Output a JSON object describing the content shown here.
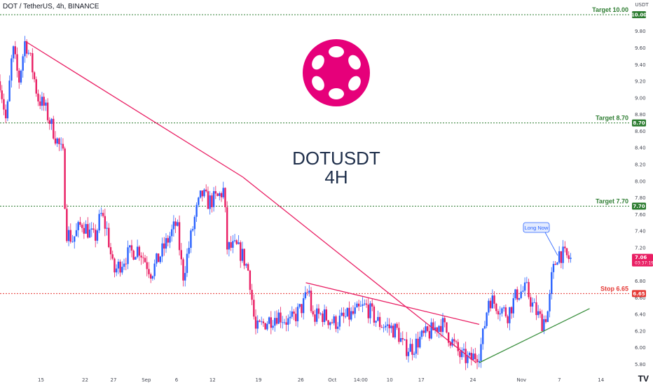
{
  "header": {
    "symbol_line": "DOT / TetherUS, 4h, BINANCE"
  },
  "colors": {
    "up": "#2962ff",
    "down": "#e91e63",
    "target": "#2e7d32",
    "stop": "#e53935",
    "trend": "#e91e63",
    "support": "#388e3c",
    "logo": "#e6007a",
    "price_badge": "#e91e63"
  },
  "icons": {
    "logo": "polkadot-logo-icon",
    "tv": "tradingview-logo-icon"
  },
  "chart_data": {
    "type": "candlestick",
    "title": "DOTUSDT",
    "subtitle": "4H",
    "y_axis": {
      "unit": "USDT",
      "ticks": [
        "10.00",
        "9.80",
        "9.60",
        "9.40",
        "9.20",
        "9.00",
        "8.80",
        "8.70",
        "8.60",
        "8.40",
        "8.20",
        "8.00",
        "7.80",
        "7.70",
        "7.60",
        "7.40",
        "7.20",
        "7.06",
        "6.80",
        "6.65",
        "6.60",
        "6.40",
        "6.20",
        "6.00",
        "5.80"
      ],
      "ylim": [
        5.72,
        10.05
      ]
    },
    "x_axis": {
      "ticks": [
        "15",
        "22",
        "27",
        "Sep",
        "6",
        "12",
        "19",
        "26",
        "Oct",
        "14:00",
        "10",
        "17",
        "24",
        "Nov",
        "7",
        "14"
      ]
    },
    "levels": [
      {
        "label": "Target 10.00",
        "badge": "10.00",
        "price": 10.0,
        "kind": "target"
      },
      {
        "label": "Target 8.70",
        "badge": "8.70",
        "price": 8.7,
        "kind": "target"
      },
      {
        "label": "Target 7.70",
        "badge": "7.70",
        "price": 7.7,
        "kind": "target"
      },
      {
        "label": "Stop 6.65",
        "badge": "6.65",
        "price": 6.65,
        "kind": "stop"
      }
    ],
    "current_price": {
      "price": "7.06",
      "countdown": "03:37:19",
      "value": 7.06
    },
    "annotation": {
      "text": "Long Now"
    },
    "trendlines": [
      {
        "kind": "trend",
        "from": [
          0.04,
          9.68
        ],
        "to": [
          0.385,
          8.05
        ]
      },
      {
        "kind": "trend",
        "from": [
          0.385,
          8.05
        ],
        "to": [
          0.755,
          5.82
        ]
      },
      {
        "kind": "trend",
        "from": [
          0.485,
          6.78
        ],
        "to": [
          0.76,
          6.28
        ]
      },
      {
        "kind": "support",
        "from": [
          0.76,
          5.82
        ],
        "to": [
          0.935,
          6.47
        ]
      }
    ],
    "series_anchors": [
      [
        0.0,
        9.2
      ],
      [
        0.01,
        8.7
      ],
      [
        0.02,
        9.6
      ],
      [
        0.03,
        9.2
      ],
      [
        0.04,
        9.7
      ],
      [
        0.05,
        9.4
      ],
      [
        0.06,
        9.0
      ],
      [
        0.07,
        8.9
      ],
      [
        0.08,
        8.7
      ],
      [
        0.09,
        8.5
      ],
      [
        0.1,
        8.3
      ],
      [
        0.105,
        7.4
      ],
      [
        0.115,
        7.3
      ],
      [
        0.13,
        7.5
      ],
      [
        0.15,
        7.3
      ],
      [
        0.16,
        7.6
      ],
      [
        0.17,
        7.4
      ],
      [
        0.18,
        6.9
      ],
      [
        0.2,
        7.1
      ],
      [
        0.22,
        7.2
      ],
      [
        0.24,
        6.9
      ],
      [
        0.26,
        7.2
      ],
      [
        0.28,
        7.5
      ],
      [
        0.29,
        6.85
      ],
      [
        0.31,
        7.6
      ],
      [
        0.32,
        7.85
      ],
      [
        0.33,
        7.75
      ],
      [
        0.345,
        7.8
      ],
      [
        0.355,
        7.9
      ],
      [
        0.36,
        7.2
      ],
      [
        0.375,
        7.2
      ],
      [
        0.385,
        7.1
      ],
      [
        0.395,
        6.9
      ],
      [
        0.405,
        6.2
      ],
      [
        0.42,
        6.3
      ],
      [
        0.44,
        6.4
      ],
      [
        0.46,
        6.3
      ],
      [
        0.48,
        6.5
      ],
      [
        0.49,
        6.7
      ],
      [
        0.495,
        6.35
      ],
      [
        0.51,
        6.4
      ],
      [
        0.53,
        6.3
      ],
      [
        0.56,
        6.4
      ],
      [
        0.58,
        6.5
      ],
      [
        0.6,
        6.3
      ],
      [
        0.63,
        6.2
      ],
      [
        0.64,
        6.0
      ],
      [
        0.655,
        6.0
      ],
      [
        0.665,
        6.1
      ],
      [
        0.685,
        6.2
      ],
      [
        0.7,
        6.3
      ],
      [
        0.715,
        6.1
      ],
      [
        0.73,
        5.9
      ],
      [
        0.745,
        5.85
      ],
      [
        0.76,
        5.95
      ],
      [
        0.765,
        6.1
      ],
      [
        0.775,
        6.6
      ],
      [
        0.79,
        6.5
      ],
      [
        0.805,
        6.4
      ],
      [
        0.82,
        6.65
      ],
      [
        0.835,
        6.7
      ],
      [
        0.845,
        6.5
      ],
      [
        0.86,
        6.3
      ],
      [
        0.87,
        6.45
      ],
      [
        0.875,
        6.85
      ],
      [
        0.885,
        7.15
      ],
      [
        0.895,
        7.1
      ],
      [
        0.905,
        7.06
      ]
    ]
  }
}
